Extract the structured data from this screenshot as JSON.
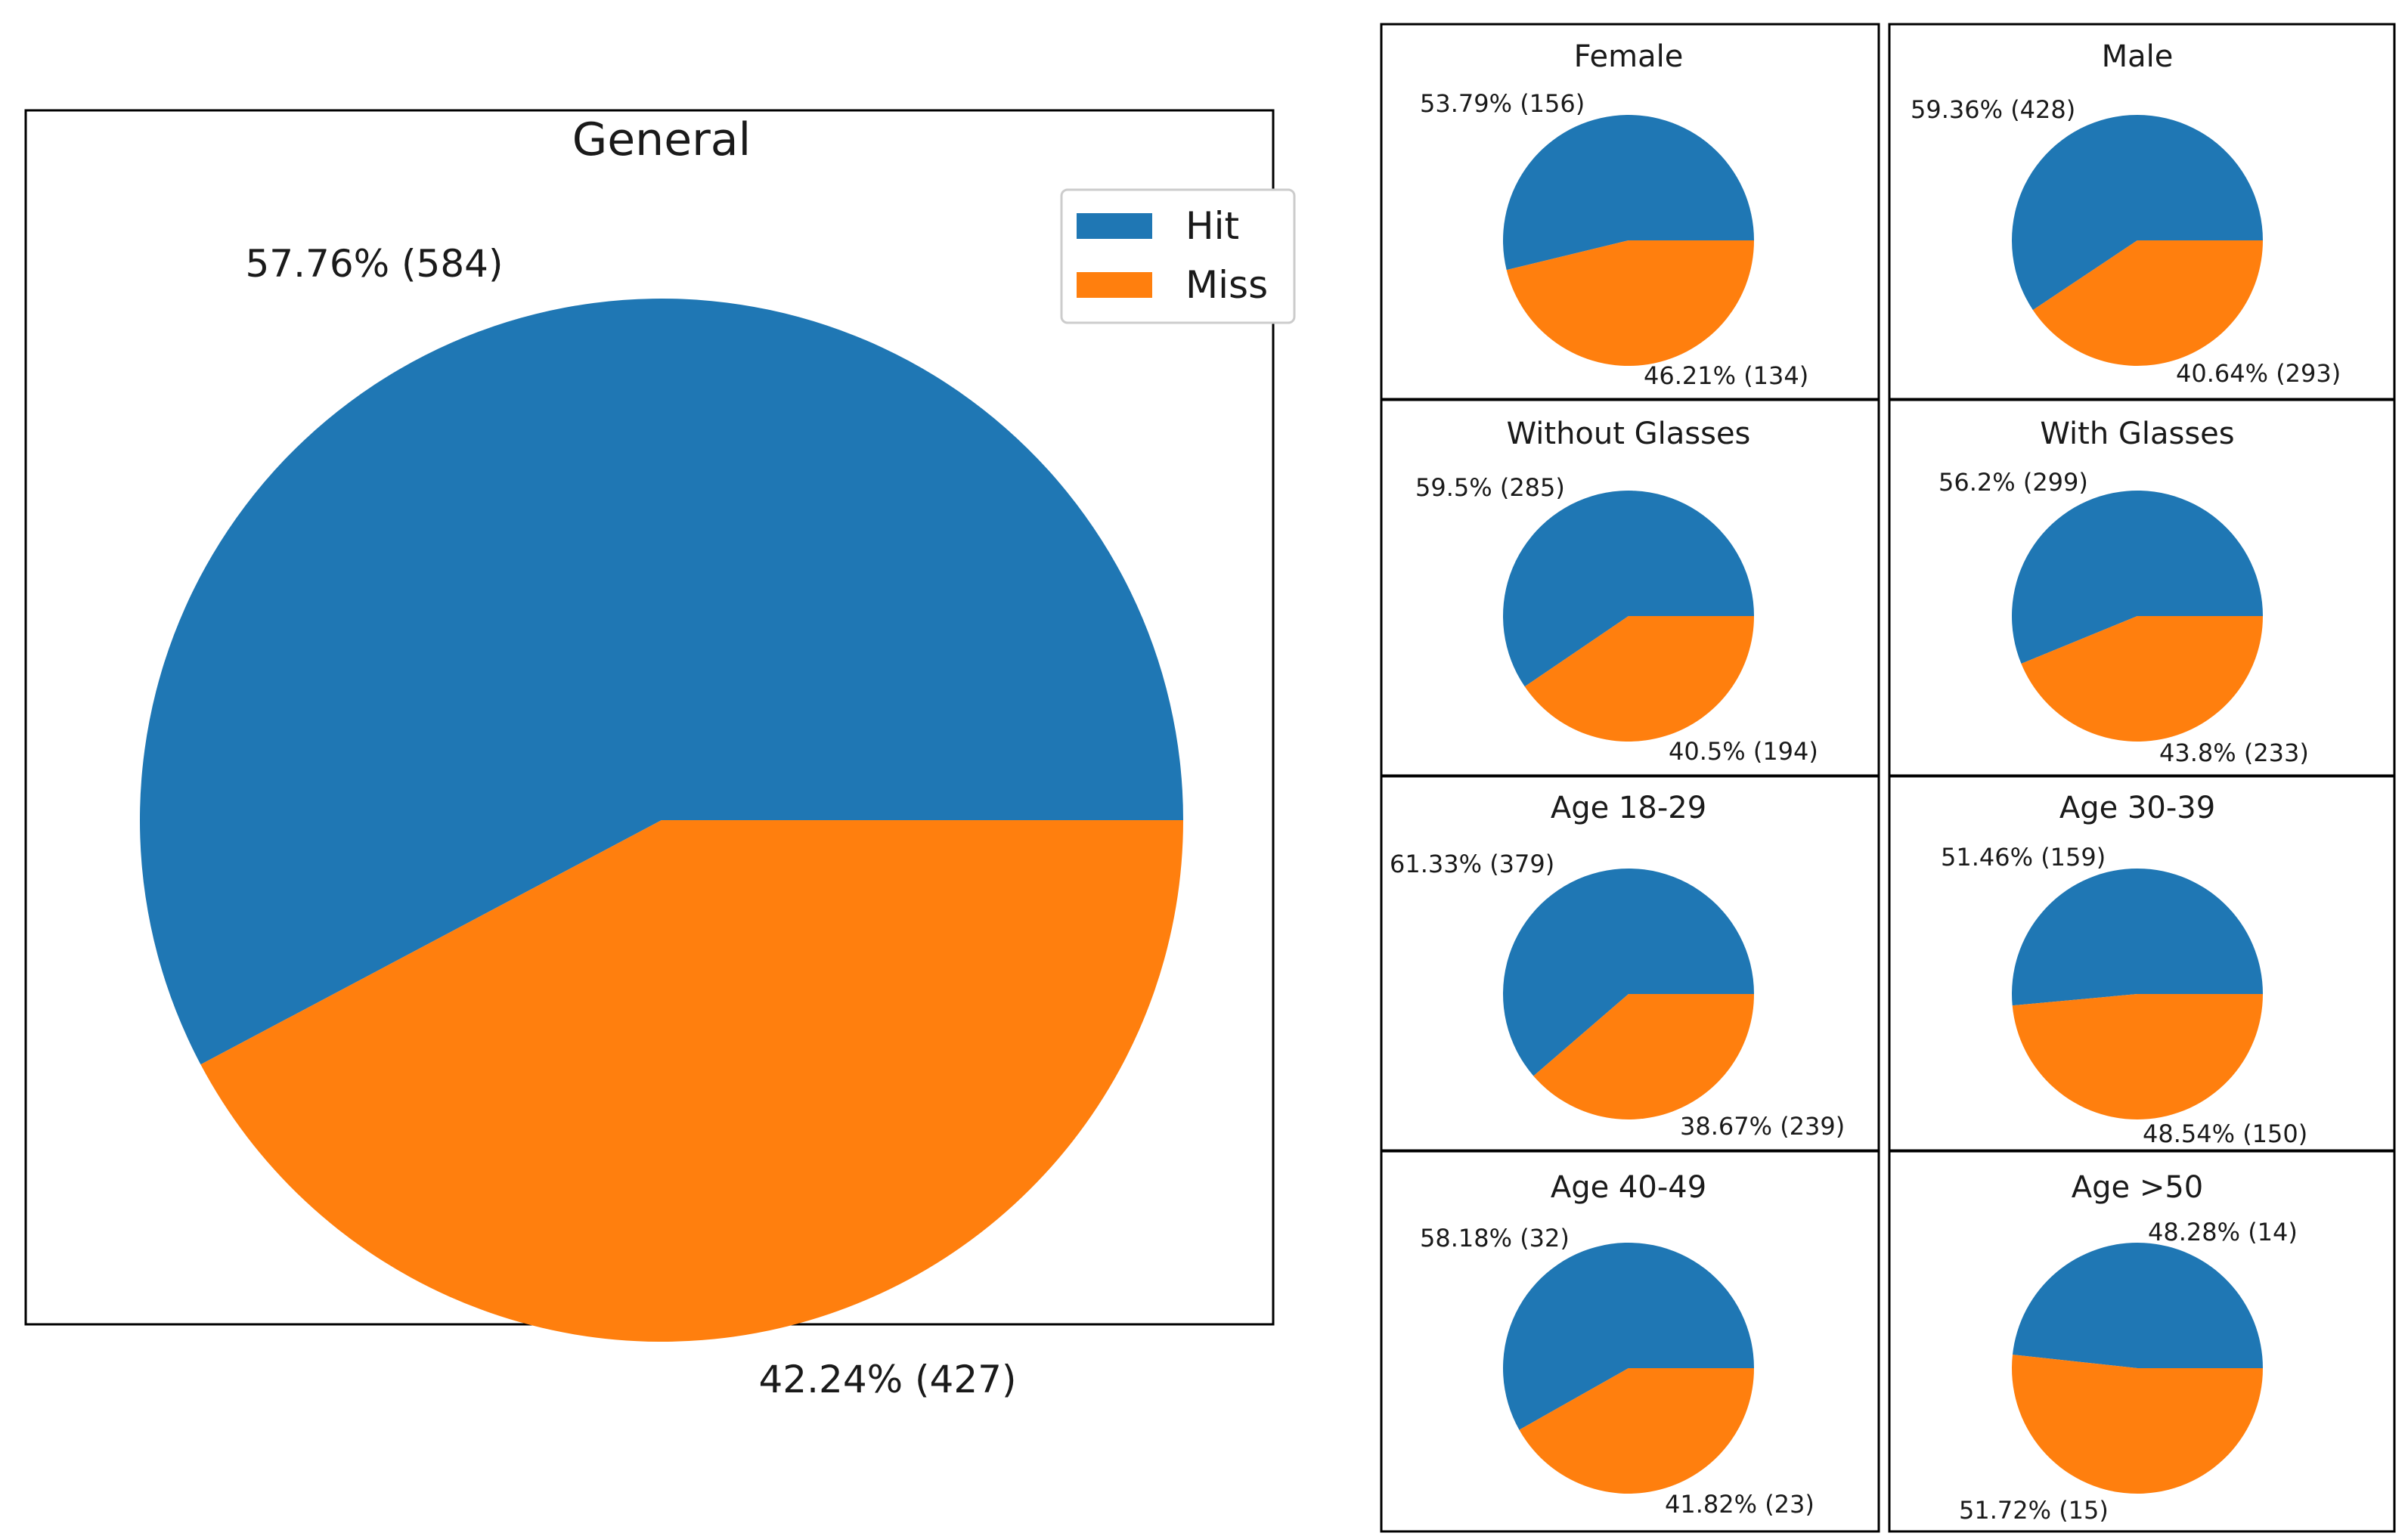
{
  "colors": {
    "hit": "#1f77b4",
    "miss": "#ff7f0e"
  },
  "chart_data": [
    {
      "id": "general",
      "type": "pie",
      "title": "General",
      "legend": {
        "position": "top-right",
        "entries": [
          "Hit",
          "Miss"
        ]
      },
      "slices": [
        {
          "name": "Hit",
          "percent": 57.76,
          "count": 584,
          "label": "57.76% (584)"
        },
        {
          "name": "Miss",
          "percent": 42.24,
          "count": 427,
          "label": "42.24% (427)"
        }
      ]
    },
    {
      "id": "female",
      "type": "pie",
      "title": "Female",
      "slices": [
        {
          "name": "Hit",
          "percent": 53.79,
          "count": 156,
          "label": "53.79% (156)"
        },
        {
          "name": "Miss",
          "percent": 46.21,
          "count": 134,
          "label": "46.21% (134)"
        }
      ]
    },
    {
      "id": "male",
      "type": "pie",
      "title": "Male",
      "slices": [
        {
          "name": "Hit",
          "percent": 59.36,
          "count": 428,
          "label": "59.36% (428)"
        },
        {
          "name": "Miss",
          "percent": 40.64,
          "count": 293,
          "label": "40.64% (293)"
        }
      ]
    },
    {
      "id": "without-glasses",
      "type": "pie",
      "title": "Without Glasses",
      "slices": [
        {
          "name": "Hit",
          "percent": 59.5,
          "count": 285,
          "label": "59.5% (285)"
        },
        {
          "name": "Miss",
          "percent": 40.5,
          "count": 194,
          "label": "40.5% (194)"
        }
      ]
    },
    {
      "id": "with-glasses",
      "type": "pie",
      "title": "With Glasses",
      "slices": [
        {
          "name": "Hit",
          "percent": 56.2,
          "count": 299,
          "label": "56.2% (299)"
        },
        {
          "name": "Miss",
          "percent": 43.8,
          "count": 233,
          "label": "43.8% (233)"
        }
      ]
    },
    {
      "id": "age-18-29",
      "type": "pie",
      "title": "Age 18-29",
      "slices": [
        {
          "name": "Hit",
          "percent": 61.33,
          "count": 379,
          "label": "61.33% (379)"
        },
        {
          "name": "Miss",
          "percent": 38.67,
          "count": 239,
          "label": "38.67% (239)"
        }
      ]
    },
    {
      "id": "age-30-39",
      "type": "pie",
      "title": "Age 30-39",
      "slices": [
        {
          "name": "Hit",
          "percent": 51.46,
          "count": 159,
          "label": "51.46% (159)"
        },
        {
          "name": "Miss",
          "percent": 48.54,
          "count": 150,
          "label": "48.54% (150)"
        }
      ]
    },
    {
      "id": "age-40-49",
      "type": "pie",
      "title": "Age 40-49",
      "slices": [
        {
          "name": "Hit",
          "percent": 58.18,
          "count": 32,
          "label": "58.18% (32)"
        },
        {
          "name": "Miss",
          "percent": 41.82,
          "count": 23,
          "label": "41.82% (23)"
        }
      ]
    },
    {
      "id": "age-over-50",
      "type": "pie",
      "title": "Age >50",
      "slices": [
        {
          "name": "Hit",
          "percent": 48.28,
          "count": 14,
          "label": "48.28% (14)"
        },
        {
          "name": "Miss",
          "percent": 51.72,
          "count": 15,
          "label": "51.72% (15)"
        }
      ]
    }
  ]
}
